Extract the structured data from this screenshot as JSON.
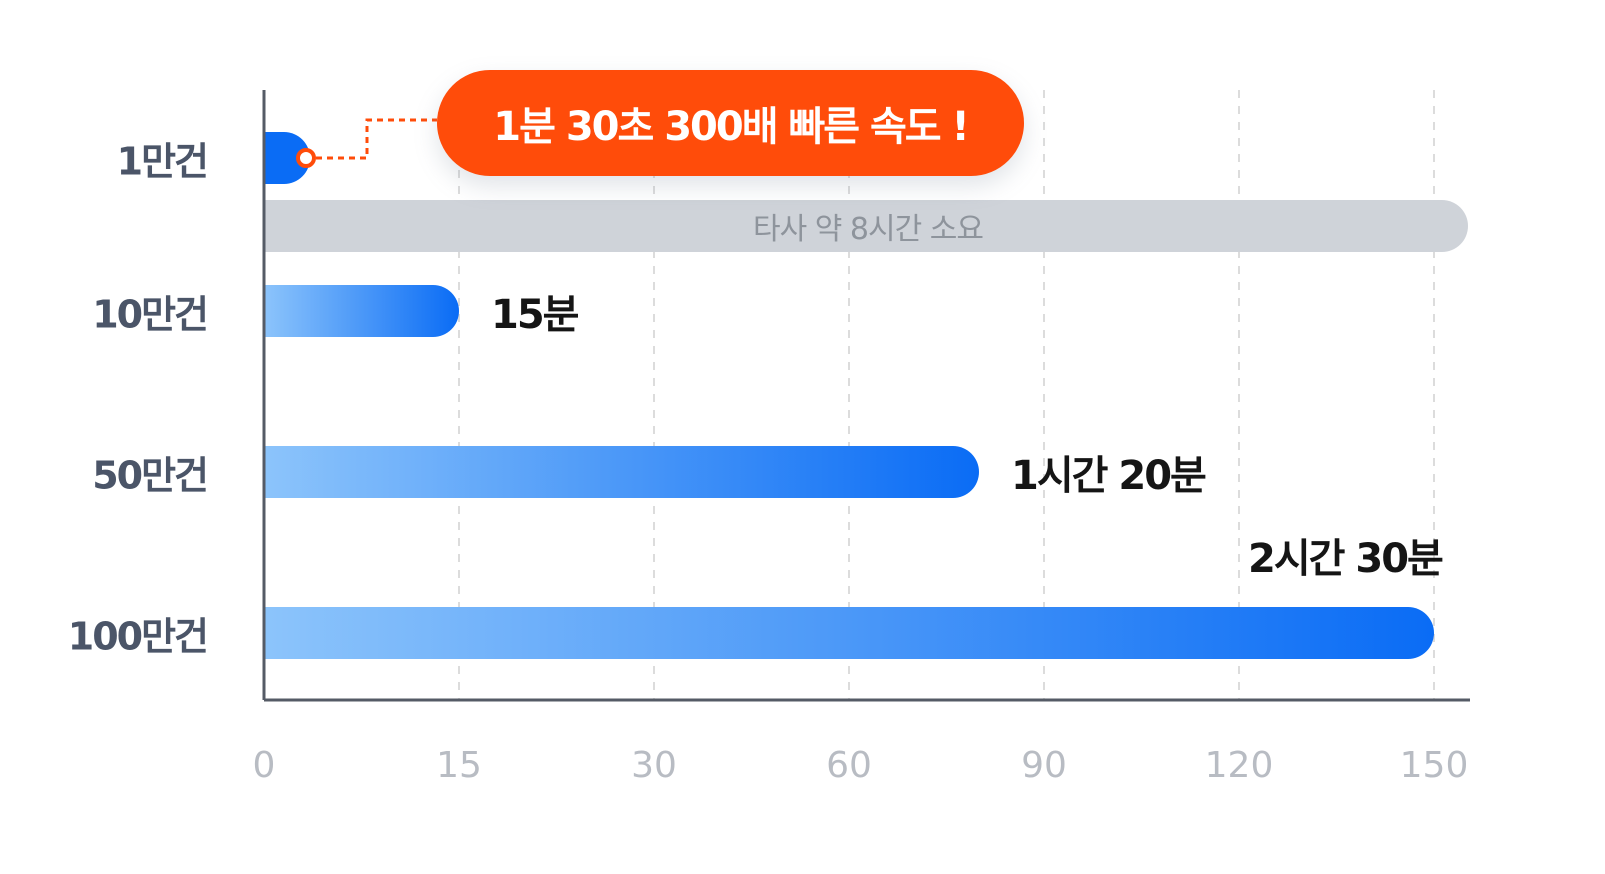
{
  "chart_data": {
    "type": "bar",
    "orientation": "horizontal",
    "categories": [
      "1만건",
      "10만건",
      "50만건",
      "100만건"
    ],
    "values": [
      1.5,
      15,
      80,
      150
    ],
    "value_labels": [
      "",
      "15분",
      "1시간 20분",
      "2시간 30분"
    ],
    "comparison": {
      "label": "타사 약 8시간 소요",
      "category": "1만건"
    },
    "callout": "1분 30초 300배 빠른 속도 !",
    "x_ticks": [
      0,
      15,
      30,
      60,
      90,
      120,
      150
    ],
    "grid": true,
    "colors": {
      "bar_start": "#8cc4fb",
      "bar_end": "#0a6cf5",
      "comparison_bar": "#cfd3d9",
      "callout": "#ff4c0a",
      "axis": "#555b66",
      "grid": "#dcdcdc"
    }
  }
}
